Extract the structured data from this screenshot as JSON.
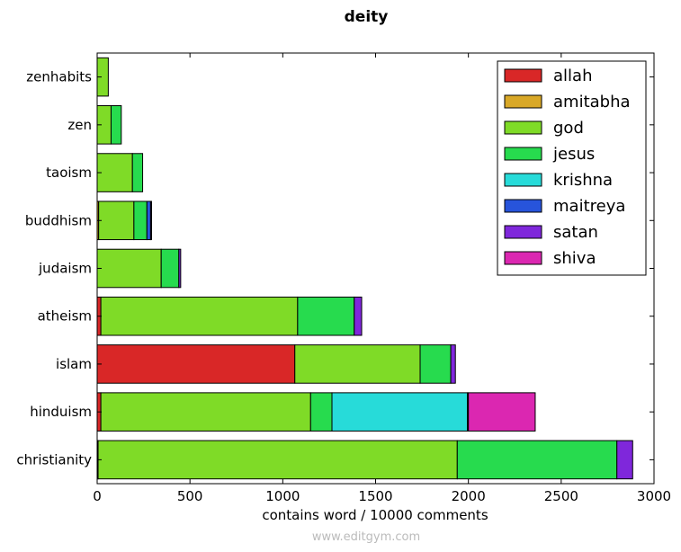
{
  "chart_data": {
    "type": "bar",
    "orientation": "horizontal",
    "stacked": true,
    "title": "deity",
    "xlabel": "contains word / 10000 comments",
    "ylabel": "",
    "xlim": [
      0,
      3000
    ],
    "xticks": [
      0,
      500,
      1000,
      1500,
      2000,
      2500,
      3000
    ],
    "legend_position": "top-right",
    "grid": false,
    "categories": [
      "zenhabits",
      "zen",
      "taoism",
      "buddhism",
      "judaism",
      "atheism",
      "islam",
      "hinduism",
      "christianity"
    ],
    "series": [
      {
        "name": "allah",
        "color": "#d92727",
        "values": [
          0,
          0,
          0,
          0,
          0,
          20,
          1065,
          20,
          5
        ]
      },
      {
        "name": "amitabha",
        "color": "#d9a827",
        "values": [
          0,
          0,
          0,
          8,
          0,
          0,
          0,
          0,
          0
        ]
      },
      {
        "name": "god",
        "color": "#7fdb27",
        "values": [
          60,
          75,
          190,
          190,
          345,
          1060,
          675,
          1130,
          1935
        ]
      },
      {
        "name": "jesus",
        "color": "#27db4e",
        "values": [
          0,
          55,
          55,
          70,
          95,
          305,
          165,
          115,
          860
        ]
      },
      {
        "name": "krishna",
        "color": "#27dbd9",
        "values": [
          0,
          0,
          0,
          0,
          0,
          0,
          0,
          730,
          0
        ]
      },
      {
        "name": "maitreya",
        "color": "#2754db",
        "values": [
          0,
          0,
          0,
          20,
          0,
          0,
          0,
          0,
          0
        ]
      },
      {
        "name": "satan",
        "color": "#7f27db",
        "values": [
          0,
          0,
          0,
          5,
          10,
          40,
          25,
          5,
          85
        ]
      },
      {
        "name": "shiva",
        "color": "#db27b1",
        "values": [
          0,
          0,
          0,
          0,
          0,
          0,
          0,
          360,
          0
        ]
      }
    ]
  },
  "watermark": "www.editgym.com"
}
